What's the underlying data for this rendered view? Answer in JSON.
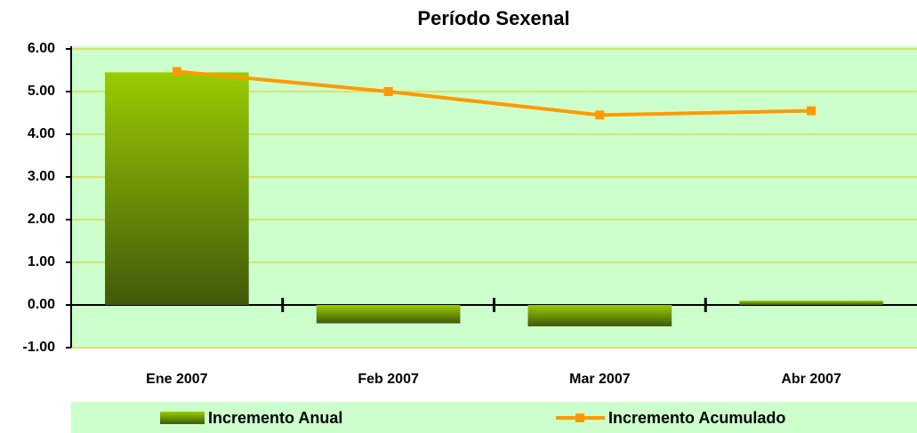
{
  "chart_data": {
    "type": "bar",
    "title": "Período Sexenal",
    "categories": [
      "Ene 2007",
      "Feb 2007",
      "Mar 2007",
      "Abr 2007"
    ],
    "series": [
      {
        "name": "Incremento Anual",
        "type": "bar",
        "color": "#99cc00",
        "values": [
          5.45,
          -0.43,
          -0.5,
          0.1
        ]
      },
      {
        "name": "Incremento Acumulado",
        "type": "line",
        "color": "#ff9900",
        "values": [
          5.47,
          5.0,
          4.45,
          4.55
        ]
      }
    ],
    "ylim": [
      -1,
      6
    ],
    "yticks": [
      {
        "value": -1,
        "label": "-1.00"
      },
      {
        "value": 0,
        "label": "0.00"
      },
      {
        "value": 1,
        "label": "1.00"
      },
      {
        "value": 2,
        "label": "2.00"
      },
      {
        "value": 3,
        "label": "3.00"
      },
      {
        "value": 4,
        "label": "4.00"
      },
      {
        "value": 5,
        "label": "5.00"
      },
      {
        "value": 6,
        "label": "6.00"
      }
    ],
    "grid": true,
    "legend": "bottom"
  }
}
